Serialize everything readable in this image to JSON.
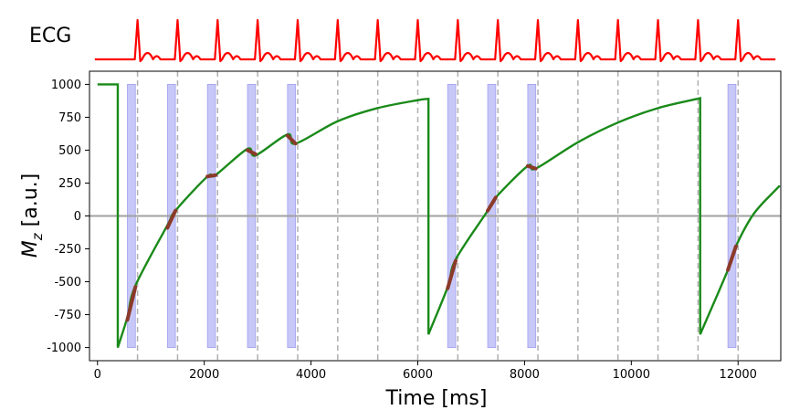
{
  "chart_data": {
    "type": "line",
    "ecg_label": "ECG",
    "xlabel": "Time [ms]",
    "ylabel_main": "M",
    "ylabel_sub": "z",
    "ylabel_unit": " [a.u.]",
    "xlim": [
      -150,
      12800
    ],
    "ylim": [
      -1100,
      1100
    ],
    "x_ticks": [
      0,
      2000,
      4000,
      6000,
      8000,
      10000,
      12000
    ],
    "y_ticks": [
      1000,
      750,
      500,
      250,
      0,
      -250,
      -500,
      -750,
      -1000
    ],
    "zero_line": 0,
    "heartbeats_ms": [
      750,
      1500,
      2250,
      3000,
      3750,
      4500,
      5250,
      6000,
      6750,
      7500,
      8250,
      9000,
      9750,
      10500,
      11250,
      12000
    ],
    "acquisition_windows_ms": [
      [
        560,
        710
      ],
      [
        1310,
        1460
      ],
      [
        2060,
        2210
      ],
      [
        2810,
        2960
      ],
      [
        3560,
        3710
      ],
      [
        6560,
        6710
      ],
      [
        7310,
        7460
      ],
      [
        8060,
        8210
      ],
      [
        11810,
        11960
      ]
    ],
    "colors": {
      "ecg": "#ff0000",
      "magnetization": "#1a8a1a",
      "readout": "#8b3a2a",
      "acquisition_window": "#c8c8f8",
      "heartbeat_line": "#b0b0b0",
      "zero_line": "#a0a0a0"
    },
    "series": [
      {
        "values": [
          [
            0,
            1000
          ],
          [
            380,
            1000
          ],
          [
            380,
            -1000
          ],
          [
            560,
            -770
          ],
          [
            710,
            -530
          ],
          [
            1310,
            -70
          ],
          [
            1460,
            40
          ],
          [
            2060,
            300
          ],
          [
            2210,
            310
          ],
          [
            2810,
            510
          ],
          [
            2960,
            460
          ],
          [
            3560,
            620
          ],
          [
            3710,
            550
          ],
          [
            4500,
            720
          ],
          [
            5250,
            820
          ],
          [
            6000,
            880
          ],
          [
            6200,
            890
          ],
          [
            6200,
            -900
          ],
          [
            6560,
            -540
          ],
          [
            6710,
            -330
          ],
          [
            7310,
            40
          ],
          [
            7460,
            140
          ],
          [
            8060,
            380
          ],
          [
            8210,
            360
          ],
          [
            9000,
            560
          ],
          [
            9750,
            710
          ],
          [
            10500,
            820
          ],
          [
            11290,
            895
          ],
          [
            11290,
            -900
          ],
          [
            11810,
            -410
          ],
          [
            11960,
            -230
          ],
          [
            12300,
            20
          ],
          [
            12780,
            230
          ]
        ]
      }
    ],
    "readout_segments": [
      [
        [
          560,
          -790
        ],
        [
          710,
          -540
        ]
      ],
      [
        [
          1310,
          -90
        ],
        [
          1460,
          40
        ]
      ],
      [
        [
          2060,
          300
        ],
        [
          2210,
          310
        ]
      ],
      [
        [
          2810,
          500
        ],
        [
          2960,
          470
        ]
      ],
      [
        [
          3560,
          610
        ],
        [
          3710,
          550
        ]
      ],
      [
        [
          6560,
          -550
        ],
        [
          6710,
          -340
        ]
      ],
      [
        [
          7310,
          40
        ],
        [
          7460,
          140
        ]
      ],
      [
        [
          8060,
          380
        ],
        [
          8210,
          360
        ]
      ],
      [
        [
          11810,
          -410
        ],
        [
          11960,
          -230
        ]
      ]
    ]
  }
}
